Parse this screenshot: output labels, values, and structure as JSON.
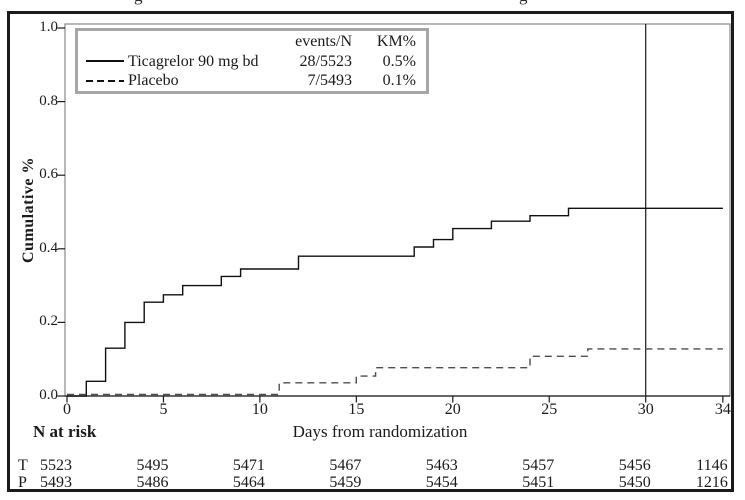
{
  "title_fragments": [
    "g",
    "g"
  ],
  "legend": {
    "col_events": "events/N",
    "col_km": "KM%",
    "rows": [
      {
        "label": "Ticagrelor 90 mg bd",
        "events": "28/5523",
        "km": "0.5%",
        "line": "solid"
      },
      {
        "label": "Placebo",
        "events": "7/5493",
        "km": "0.1%",
        "line": "dashed"
      }
    ]
  },
  "axes": {
    "y_label": "Cumulative %",
    "x_label": "Days from randomization",
    "y_ticks": [
      "1.0",
      "0.8",
      "0.6",
      "0.4",
      "0.2",
      "0.0"
    ],
    "x_ticks": [
      "0",
      "5",
      "10",
      "15",
      "20",
      "25",
      "30",
      "34"
    ]
  },
  "n_at_risk": {
    "heading": "N at risk",
    "rows": [
      {
        "label": "T",
        "values": [
          "5523",
          "5495",
          "5471",
          "5467",
          "5463",
          "5457",
          "5456",
          "1146"
        ]
      },
      {
        "label": "P",
        "values": [
          "5493",
          "5486",
          "5464",
          "5459",
          "5454",
          "5451",
          "5450",
          "1216"
        ]
      }
    ]
  },
  "chart_data": {
    "type": "line",
    "subtype": "kaplan-meier-step",
    "xlabel": "Days from randomization",
    "ylabel": "Cumulative %",
    "xlim": [
      0,
      34
    ],
    "ylim": [
      0,
      1.0
    ],
    "x_tick_values": [
      0,
      5,
      10,
      15,
      20,
      25,
      30,
      34
    ],
    "y_tick_values": [
      1.0,
      0.8,
      0.6,
      0.4,
      0.2,
      0.0
    ],
    "reference_line_x": 30,
    "grid": false,
    "legend_position": "top-left-inside",
    "series": [
      {
        "name": "Ticagrelor 90 mg bd",
        "style": "solid",
        "events_n": "28/5523",
        "km_pct": "0.5%",
        "points": [
          [
            0,
            0
          ],
          [
            1,
            0.04
          ],
          [
            2,
            0.13
          ],
          [
            3,
            0.2
          ],
          [
            4,
            0.255
          ],
          [
            5,
            0.275
          ],
          [
            6,
            0.3
          ],
          [
            8,
            0.325
          ],
          [
            9,
            0.345
          ],
          [
            12,
            0.38
          ],
          [
            18,
            0.405
          ],
          [
            19,
            0.425
          ],
          [
            20,
            0.455
          ],
          [
            22,
            0.475
          ],
          [
            24,
            0.49
          ],
          [
            26,
            0.51
          ],
          [
            34,
            0.51
          ]
        ]
      },
      {
        "name": "Placebo",
        "style": "dashed",
        "events_n": "7/5493",
        "km_pct": "0.1%",
        "points": [
          [
            0,
            0.004
          ],
          [
            11,
            0.036
          ],
          [
            15,
            0.054
          ],
          [
            16,
            0.077
          ],
          [
            24,
            0.108
          ],
          [
            27,
            0.128
          ],
          [
            34,
            0.128
          ]
        ]
      }
    ]
  },
  "colors": {
    "ticagrelor_line": "#111111",
    "placebo_line": "#4d4d4d",
    "frame": "#8a8a8a",
    "axis": "#1a1a1a",
    "outer_border": "#1b1b1b",
    "legend_border": "#a6a6a6"
  }
}
